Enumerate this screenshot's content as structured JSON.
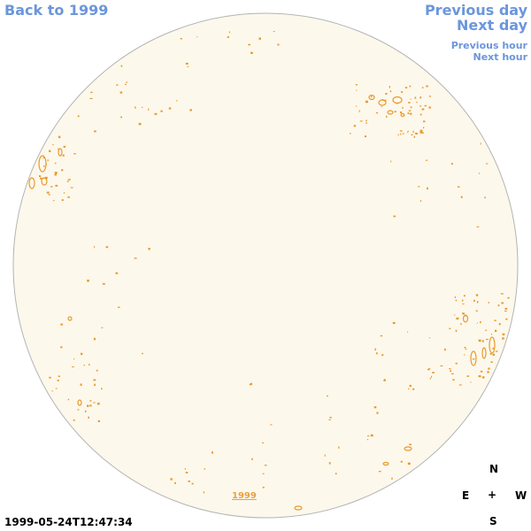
{
  "nav": {
    "back": "Back to 1999",
    "previous_day": "Previous day",
    "next_day": "Next day",
    "previous_hour": "Previous hour",
    "next_hour": "Next hour"
  },
  "compass": {
    "north": "N",
    "south": "S",
    "east": "E",
    "west": "W",
    "center": "+"
  },
  "timestamp": "1999-05-24T12:47:34",
  "year_link": "1999",
  "colors": {
    "link": "#6b96dc",
    "disk_fill": "#fdf8ec",
    "disk_outline": "#b4b4b4",
    "contour": "#e89a2c",
    "year_link": "#e8a040"
  }
}
